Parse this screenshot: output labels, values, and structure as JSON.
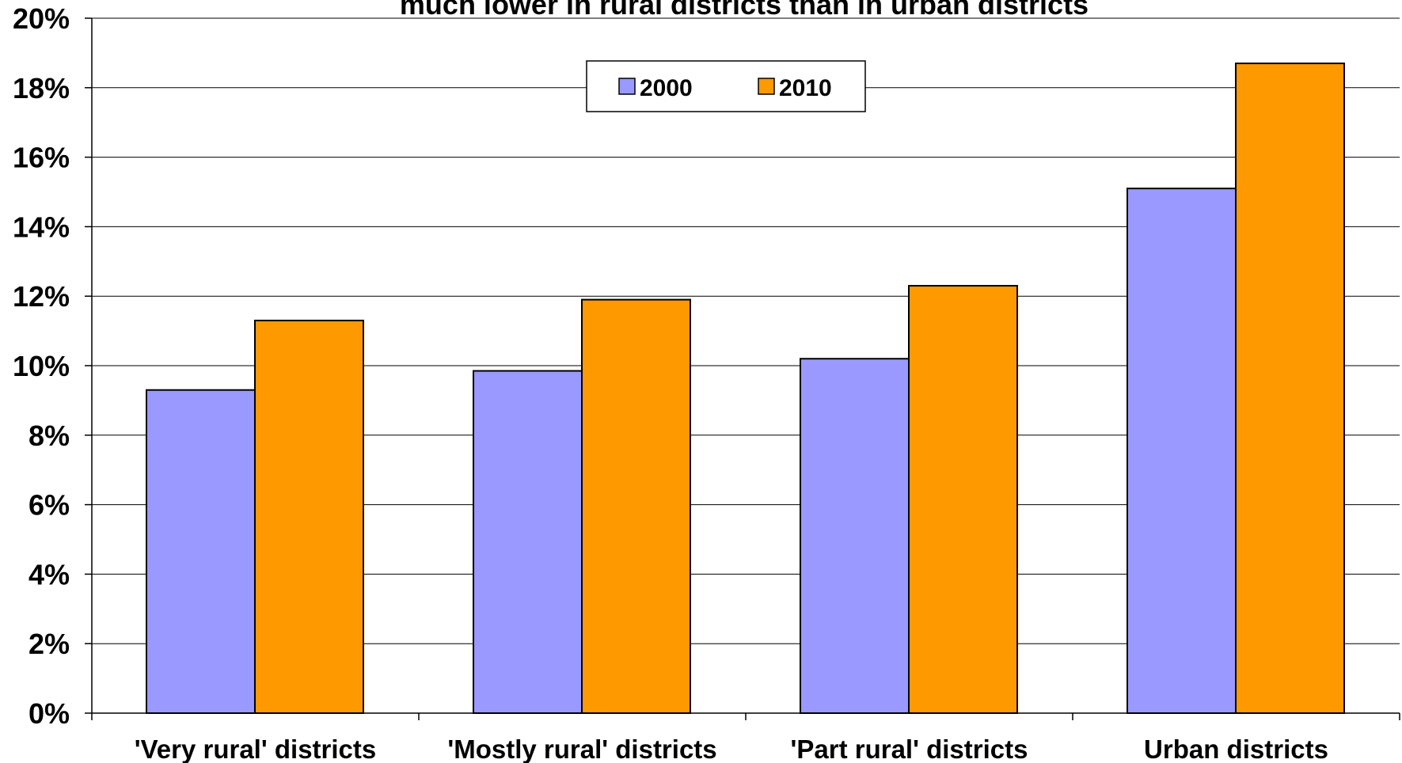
{
  "chart_data": {
    "type": "bar",
    "title": "much lower in rural districts than in urban districts",
    "categories": [
      "'Very rural' districts",
      "'Mostly rural' districts",
      "'Part rural' districts",
      "Urban districts"
    ],
    "series": [
      {
        "name": "2000",
        "values": [
          9.3,
          9.85,
          10.2,
          15.1
        ],
        "color": "#9999ff"
      },
      {
        "name": "2010",
        "values": [
          11.3,
          11.9,
          12.3,
          18.7
        ],
        "color": "#ff9900"
      }
    ],
    "y_ticks": [
      "0%",
      "2%",
      "4%",
      "6%",
      "8%",
      "10%",
      "12%",
      "14%",
      "16%",
      "18%",
      "20%"
    ],
    "ylim": [
      0,
      20
    ],
    "grid": true,
    "legend": "top-center"
  }
}
